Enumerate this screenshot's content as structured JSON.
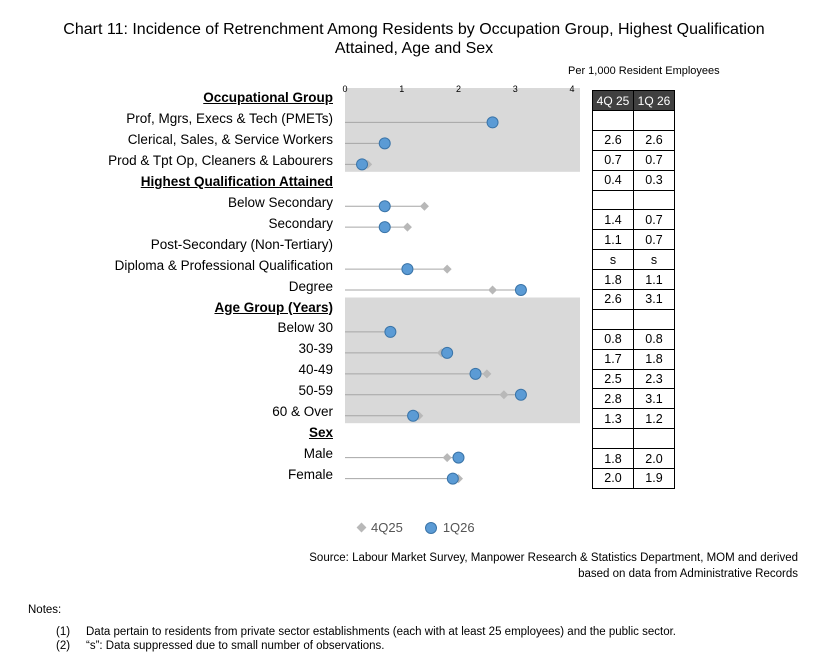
{
  "chart_data": {
    "type": "dot",
    "title_line1": "Chart 11: Incidence of Retrenchment Among Residents by Occupation Group, Highest Qualification",
    "title_line2": "Attained, Age and Sex",
    "unit_note": "Per 1,000 Resident Employees",
    "xlim": [
      0,
      4
    ],
    "x_ticks": [
      "0",
      "1",
      "2",
      "3",
      "4"
    ],
    "series": [
      {
        "name": "4Q25",
        "color": "#b8b8b8",
        "marker": "diamond"
      },
      {
        "name": "1Q26",
        "color": "#5b9bd5",
        "marker": "circle"
      }
    ],
    "table_headers": [
      "4Q 25",
      "1Q 26"
    ],
    "rows": [
      {
        "label": "Occupational Group",
        "header": true,
        "shade": true
      },
      {
        "label": "Prof, Mgrs, Execs & Tech (PMETs)",
        "v1": 2.6,
        "v2": 2.6,
        "t1": "2.6",
        "t2": "2.6",
        "shade": true
      },
      {
        "label": "Clerical, Sales, & Service Workers",
        "v1": 0.7,
        "v2": 0.7,
        "t1": "0.7",
        "t2": "0.7",
        "shade": true
      },
      {
        "label": "Prod & Tpt Op, Cleaners & Labourers",
        "v1": 0.4,
        "v2": 0.3,
        "t1": "0.4",
        "t2": "0.3",
        "shade": true
      },
      {
        "label": "Highest Qualification Attained",
        "header": true,
        "shade": false
      },
      {
        "label": "Below Secondary",
        "v1": 1.4,
        "v2": 0.7,
        "t1": "1.4",
        "t2": "0.7",
        "shade": false
      },
      {
        "label": "Secondary",
        "v1": 1.1,
        "v2": 0.7,
        "t1": "1.1",
        "t2": "0.7",
        "shade": false
      },
      {
        "label": "Post-Secondary (Non-Tertiary)",
        "v1": null,
        "v2": null,
        "t1": "s",
        "t2": "s",
        "shade": false
      },
      {
        "label": "Diploma & Professional Qualification",
        "v1": 1.8,
        "v2": 1.1,
        "t1": "1.8",
        "t2": "1.1",
        "shade": false
      },
      {
        "label": "Degree",
        "v1": 2.6,
        "v2": 3.1,
        "t1": "2.6",
        "t2": "3.1",
        "shade": false
      },
      {
        "label": "Age Group (Years)",
        "header": true,
        "shade": true
      },
      {
        "label": "Below 30",
        "v1": 0.8,
        "v2": 0.8,
        "t1": "0.8",
        "t2": "0.8",
        "shade": true
      },
      {
        "label": "30-39",
        "v1": 1.7,
        "v2": 1.8,
        "t1": "1.7",
        "t2": "1.8",
        "shade": true
      },
      {
        "label": "40-49",
        "v1": 2.5,
        "v2": 2.3,
        "t1": "2.5",
        "t2": "2.3",
        "shade": true
      },
      {
        "label": "50-59",
        "v1": 2.8,
        "v2": 3.1,
        "t1": "2.8",
        "t2": "3.1",
        "shade": true
      },
      {
        "label": "60 & Over",
        "v1": 1.3,
        "v2": 1.2,
        "t1": "1.3",
        "t2": "1.2",
        "shade": true
      },
      {
        "label": "Sex",
        "header": true,
        "shade": false
      },
      {
        "label": "Male",
        "v1": 1.8,
        "v2": 2.0,
        "t1": "1.8",
        "t2": "2.0",
        "shade": false
      },
      {
        "label": "Female",
        "v1": 2.0,
        "v2": 1.9,
        "t1": "2.0",
        "t2": "1.9",
        "shade": false
      }
    ]
  },
  "legend": {
    "s1": "4Q25",
    "s2": "1Q26"
  },
  "source": {
    "line1": "Source: Labour Market Survey, Manpower Research & Statistics Department, MOM and derived",
    "line2": "based on data from Administrative Records"
  },
  "notes": {
    "title": "Notes:",
    "n1_num": "(1)",
    "n1_text": "Data pertain to residents from private sector establishments (each with at least 25 employees) and the public sector.",
    "n2_num": "(2)",
    "n2_text": "“s”: Data suppressed due to small number of observations."
  }
}
